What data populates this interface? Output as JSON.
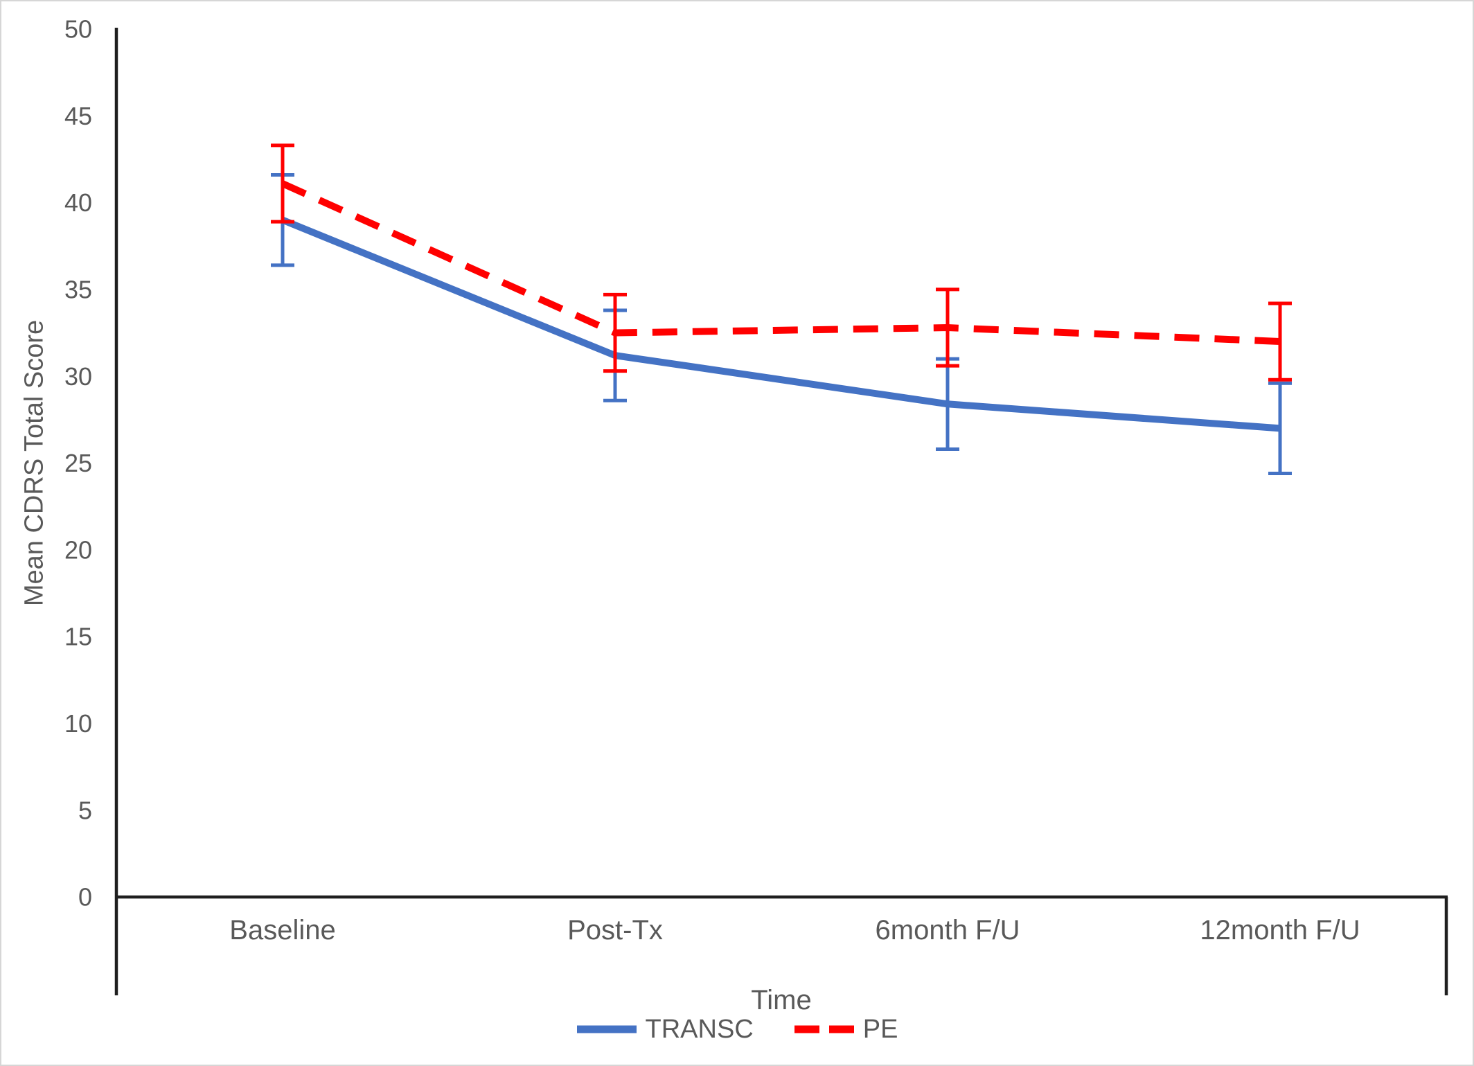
{
  "chart_data": {
    "type": "line",
    "title": "",
    "xlabel": "Time",
    "ylabel": "Mean CDRS Total Score",
    "categories": [
      "Baseline",
      "Post-Tx",
      "6month F/U",
      "12month F/U"
    ],
    "ylim": [
      0,
      50
    ],
    "ytick_step": 5,
    "grid": false,
    "legend_position": "bottom",
    "series": [
      {
        "name": "TRANSC",
        "color": "#4472C4",
        "line_style": "solid",
        "values": [
          39.0,
          31.2,
          28.4,
          27.0
        ],
        "error_bars": [
          2.6,
          2.6,
          2.6,
          2.6
        ]
      },
      {
        "name": "PE",
        "color": "#FF0000",
        "line_style": "dashed",
        "values": [
          41.1,
          32.5,
          32.8,
          32.0
        ],
        "error_bars": [
          2.2,
          2.2,
          2.2,
          2.2
        ]
      }
    ]
  },
  "colors": {
    "axis": "#1f1f1f",
    "text": "#595959",
    "border": "#d6d6d6",
    "background": "#ffffff"
  }
}
